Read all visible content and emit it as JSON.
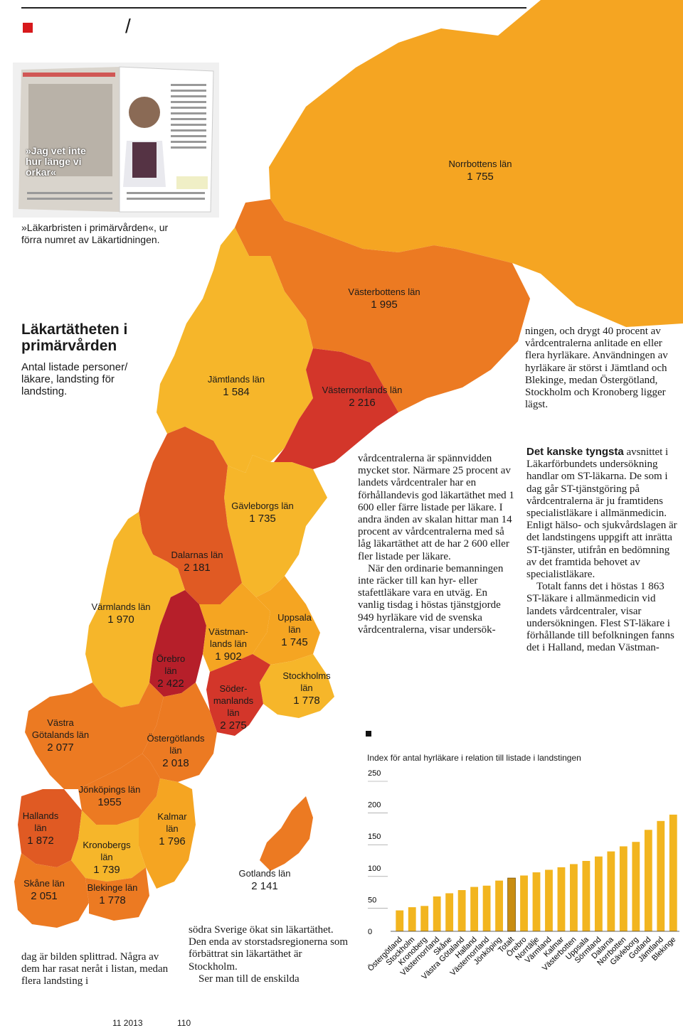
{
  "header": {
    "slash": "/"
  },
  "thumbnail": {
    "headline": "»Jag vet inte hur länge vi orkar«",
    "caption": "»Läkarbristen i primärvården«, ur förra numret av Läkartidningen."
  },
  "map": {
    "title": "Läkartätheten i primärvården",
    "subtitle": "Antal listade personer/ läkare, landsting för landsting.",
    "colors": {
      "light": "#f5a522",
      "mid": "#ec7a22",
      "dark": "#e05a23",
      "red": "#d3362a",
      "darkred": "#b61f2a",
      "yellow": "#f6b62a"
    },
    "regions": [
      {
        "name": "Norrbottens län",
        "value": "1 755"
      },
      {
        "name": "Västerbottens län",
        "value": "1 995"
      },
      {
        "name": "Jämtlands län",
        "value": "1 584"
      },
      {
        "name": "Västernorrlands län",
        "value": "2 216"
      },
      {
        "name": "Gävleborgs län",
        "value": "1 735"
      },
      {
        "name": "Dalarnas län",
        "value": "2 181"
      },
      {
        "name": "Värmlands län",
        "value": "1 970"
      },
      {
        "name": "Västman- lands län",
        "value": "1 902"
      },
      {
        "name": "Uppsala län",
        "value": "1 745"
      },
      {
        "name": "Örebro län",
        "value": "2 422"
      },
      {
        "name": "Stockholms län",
        "value": "1 778"
      },
      {
        "name": "Söder- manlands län",
        "value": "2 275"
      },
      {
        "name": "Västra Götalands län",
        "value": "2 077"
      },
      {
        "name": "Östergötlands län",
        "value": "2 018"
      },
      {
        "name": "Jönköpings län",
        "value": "1955"
      },
      {
        "name": "Hallands län",
        "value": "1 872"
      },
      {
        "name": "Kalmar län",
        "value": "1 796"
      },
      {
        "name": "Kronobergs län",
        "value": "1 739"
      },
      {
        "name": "Skåne län",
        "value": "2 051"
      },
      {
        "name": "Blekinge län",
        "value": "1 778"
      },
      {
        "name": "Gotlands län",
        "value": "2 141"
      }
    ]
  },
  "text": {
    "right_top": "ningen, och drygt 40 procent av vårdcentralerna anlitade en eller flera hyrläkare. Användningen av hyrläkare är störst i Jämtland och Blekinge, medan Östergötland, Stockholm och Kronoberg ligger lägst.",
    "mid_col_p1": "vårdcentralerna är spännvidden mycket stor. Närmare 25 procent av landets vårdcentraler har en förhållandevis god läkartäthet med 1 600 eller färre listade per läkare. I andra änden av skalan hittar man 14 procent av vårdcentralerna med så låg läkartäthet att de har 2 600 eller fler listade per läkare.",
    "mid_col_p2": "När den ordinarie bemanningen inte räcker till kan hyr- eller stafettläkare vara en utväg. En vanlig tisdag i höstas tjänstgjorde 949 hyrläkare vid de svenska vårdcentralerna, visar undersök-",
    "right_col_lead": "Det kanske tyngsta",
    "right_col_p1": " avsnittet i Läkarförbundets undersökning handlar om ST-läkarna. De som i dag går ST-tjänstgöring på vårdcentralerna är ju framtidens specialistläkare i allmänmedicin. Enligt hälso- och sjukvårdslagen är det landstingens uppgift att inrätta ST-tjänster, utifrån en bedömning av det framtida behovet av specialistläkare.",
    "right_col_p2": "Totalt fanns det i höstas 1 863 ST-läkare i allmänmedicin vid landets vårdcentraler, visar undersökningen. Flest ST-läkare i förhållande till befolkningen fanns det i Halland, medan Västman-",
    "bottom_left": "dag är bilden splittrad. Några av dem har rasat neråt i listan, medan flera landsting i",
    "bottom_mid_p1": "södra Sverige ökat sin läkartäthet. Den enda av storstadsregionerna som förbättrat sin läkartäthet är Stockholm.",
    "bottom_mid_p2": "Ser man till de enskilda"
  },
  "chart_data": {
    "type": "bar",
    "title": "Index för antal hyrläkare i relation till listade i landstingen",
    "ylim": [
      0,
      250
    ],
    "yticks": [
      "250",
      "200",
      "150",
      "100",
      "50",
      "0"
    ],
    "categories": [
      "Östergötland",
      "Stockholm",
      "Kronoberg",
      "Västernorrland",
      "Skåne",
      "Västra Götaland",
      "Halland",
      "Västernorrland",
      "Jönköping",
      "Totalt",
      "Örebro",
      "Norrtälje",
      "Värmland",
      "Kalmar",
      "Västerbotten",
      "Uppsala",
      "Sörmland",
      "Dalarna",
      "Norrbotten",
      "Gävleborg",
      "Gotland",
      "Jämtland",
      "Blekinge"
    ],
    "values": [
      33,
      38,
      40,
      55,
      60,
      65,
      70,
      72,
      80,
      84,
      88,
      93,
      97,
      101,
      106,
      111,
      118,
      126,
      134,
      141,
      160,
      174,
      184
    ],
    "highlight_category": "Totalt",
    "bar_color": "#f2b51f"
  },
  "footer": {
    "issue": "11 2013",
    "page": "110"
  }
}
